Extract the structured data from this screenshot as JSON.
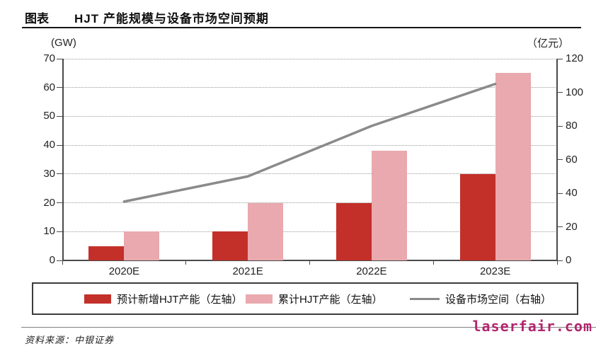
{
  "header": {
    "tag": "图表",
    "title": "HJT 产能规模与设备市场空间预期"
  },
  "chart_data": {
    "type": "bar",
    "subtype": "grouped bars with overlay line",
    "categories": [
      "2020E",
      "2021E",
      "2022E",
      "2023E"
    ],
    "series": [
      {
        "name": "预计新增HJT产能（左轴）",
        "kind": "bar",
        "axis": "left",
        "color": "#c3302a",
        "values": [
          5,
          10,
          20,
          30
        ]
      },
      {
        "name": "累计HJT产能（左轴）",
        "kind": "bar",
        "axis": "left",
        "color": "#e9a9ae",
        "values": [
          10,
          20,
          38,
          65
        ]
      },
      {
        "name": "设备市场空间（右轴）",
        "kind": "line",
        "axis": "right",
        "color": "#8a8a8a",
        "values": [
          35,
          50,
          80,
          105
        ]
      }
    ],
    "left_axis": {
      "unit": "(GW)",
      "min": 0,
      "max": 70,
      "step": 10
    },
    "right_axis": {
      "unit": "（亿元）",
      "min": 0,
      "max": 120,
      "step": 20
    },
    "grid": "horizontal dotted",
    "legend_position": "bottom boxed"
  },
  "footer": {
    "source": "资料来源：中银证券"
  },
  "watermark": {
    "text": "laserfair.com",
    "color": "#b2256e"
  }
}
